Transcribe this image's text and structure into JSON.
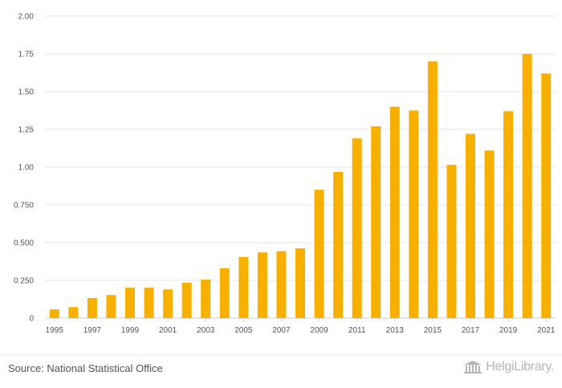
{
  "chart_data": {
    "type": "bar",
    "title": "",
    "xlabel": "",
    "ylabel": "",
    "categories": [
      "1995",
      "1996",
      "1997",
      "1998",
      "1999",
      "2000",
      "2001",
      "2002",
      "2003",
      "2004",
      "2005",
      "2006",
      "2007",
      "2008",
      "2009",
      "2010",
      "2011",
      "2012",
      "2013",
      "2014",
      "2015",
      "2016",
      "2017",
      "2018",
      "2019",
      "2020",
      "2021"
    ],
    "values": [
      0.058,
      0.073,
      0.133,
      0.153,
      0.201,
      0.201,
      0.19,
      0.235,
      0.255,
      0.33,
      0.405,
      0.435,
      0.443,
      0.462,
      0.85,
      0.968,
      1.19,
      1.27,
      1.4,
      1.375,
      1.7,
      1.015,
      1.22,
      1.11,
      1.37,
      1.75,
      1.62
    ],
    "ylim": [
      0,
      2.0
    ],
    "y_ticks": [
      "0",
      "0.250",
      "0.500",
      "0.750",
      "1.00",
      "1.25",
      "1.50",
      "1.75",
      "2.00"
    ],
    "y_tick_values": [
      0,
      0.25,
      0.5,
      0.75,
      1.0,
      1.25,
      1.5,
      1.75,
      2.0
    ],
    "x_tick_labels": [
      "1995",
      "1997",
      "1999",
      "2001",
      "2003",
      "2005",
      "2007",
      "2009",
      "2011",
      "2013",
      "2015",
      "2017",
      "2019",
      "2021"
    ],
    "grid": true,
    "bar_color": "#F8B000"
  },
  "footer": {
    "source": "Source: National Statistical Office",
    "brand": "HelgiLibrary."
  },
  "icons": {
    "brand_logo": "library-building-icon"
  }
}
